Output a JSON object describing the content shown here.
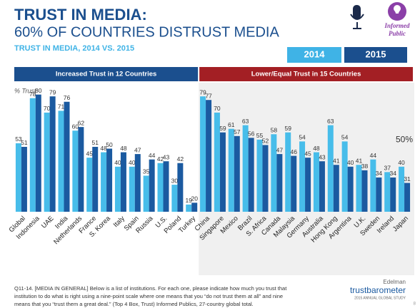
{
  "chart_data": {
    "type": "bar",
    "title": "TRUST IN MEDIA:",
    "subtitle": "60% OF COUNTRIES DISTRUST MEDIA",
    "chart_title": "TRUST IN MEDIA, 2014 VS. 2015",
    "y_label": "% Trust",
    "groups": [
      {
        "label": "Increased Trust in 12 Countries",
        "color": "#1b4f8e"
      },
      {
        "label": "Lower/Equal Trust in 15 Countries",
        "color": "#a31f24"
      }
    ],
    "categories": [
      "Global",
      "Indonesia",
      "UAE",
      "India",
      "Netherlands",
      "France",
      "S. Korea",
      "Italy",
      "Spain",
      "Russia",
      "U.S.",
      "Poland",
      "Turkey",
      "China",
      "Singapore",
      "Mexico",
      "Brazil",
      "S. Africa",
      "Canada",
      "Malaysia",
      "Germany",
      "Australia",
      "Hong Kong",
      "Argentina",
      "U.K.",
      "Sweden",
      "Ireland",
      "Japan"
    ],
    "series": [
      {
        "name": "2014",
        "color": "#47bdea",
        "values": [
          53,
          78,
          70,
          71,
          60,
          45,
          48,
          40,
          40,
          35,
          42,
          30,
          19,
          79,
          70,
          61,
          63,
          55,
          58,
          59,
          54,
          48,
          63,
          54,
          41,
          44,
          37,
          40
        ]
      },
      {
        "name": "2015",
        "color": "#1b5aa0",
        "values": [
          51,
          80,
          79,
          76,
          62,
          51,
          50,
          48,
          47,
          44,
          43,
          42,
          20,
          77,
          59,
          57,
          56,
          52,
          47,
          46,
          45,
          43,
          41,
          40,
          38,
          34,
          34,
          31
        ]
      }
    ],
    "ylim": [
      15,
      85
    ],
    "annotations": [
      {
        "value": 50,
        "label": "50%"
      }
    ]
  },
  "header": {
    "badge": [
      "Informed",
      "Public"
    ]
  },
  "footer": {
    "note": [
      "Q11-14. [MEDIA IN GENERAL] Below is a list of institutions. For each one, please indicate how much you trust that",
      "institution to do what is right using a nine-point scale where one means that you “do not trust them at all” and nine",
      "means that you “trust them a great deal.” (Top 4 Box, Trust) Informed Publics, 27-country global total."
    ],
    "brand": "Edelman",
    "product": "trustbarometer",
    "study": "2015 ANNUAL GLOBAL STUDY",
    "page": "8"
  }
}
